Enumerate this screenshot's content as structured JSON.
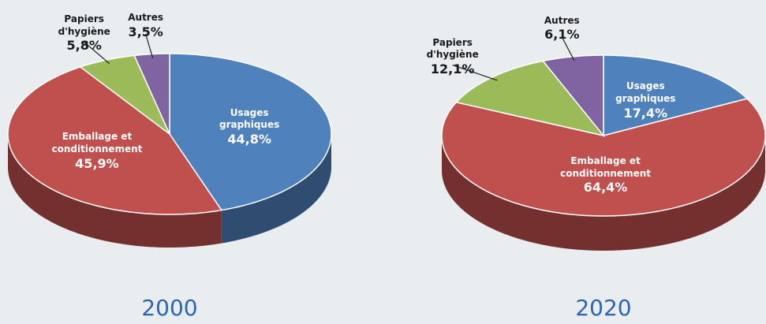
{
  "chart_data": [
    {
      "type": "pie",
      "title": "2000",
      "categories": [
        "Usages graphiques",
        "Emballage et conditionnement",
        "Papiers d'hygiène",
        "Autres"
      ],
      "values": [
        44.8,
        45.9,
        5.8,
        3.5
      ],
      "value_labels": [
        "44,8%",
        "45,9%",
        "5,8%",
        "3,5%"
      ],
      "colors": [
        "#4f81bd",
        "#c0504d",
        "#9bbb59",
        "#8064a2"
      ]
    },
    {
      "type": "pie",
      "title": "2020",
      "categories": [
        "Usages graphiques",
        "Emballage et conditionnement",
        "Papiers d'hygiène",
        "Autres"
      ],
      "values": [
        17.4,
        64.4,
        12.1,
        6.1
      ],
      "value_labels": [
        "17,4%",
        "64,4%",
        "12,1%",
        "6,1%"
      ],
      "colors": [
        "#4f81bd",
        "#c0504d",
        "#9bbb59",
        "#8064a2"
      ]
    }
  ]
}
